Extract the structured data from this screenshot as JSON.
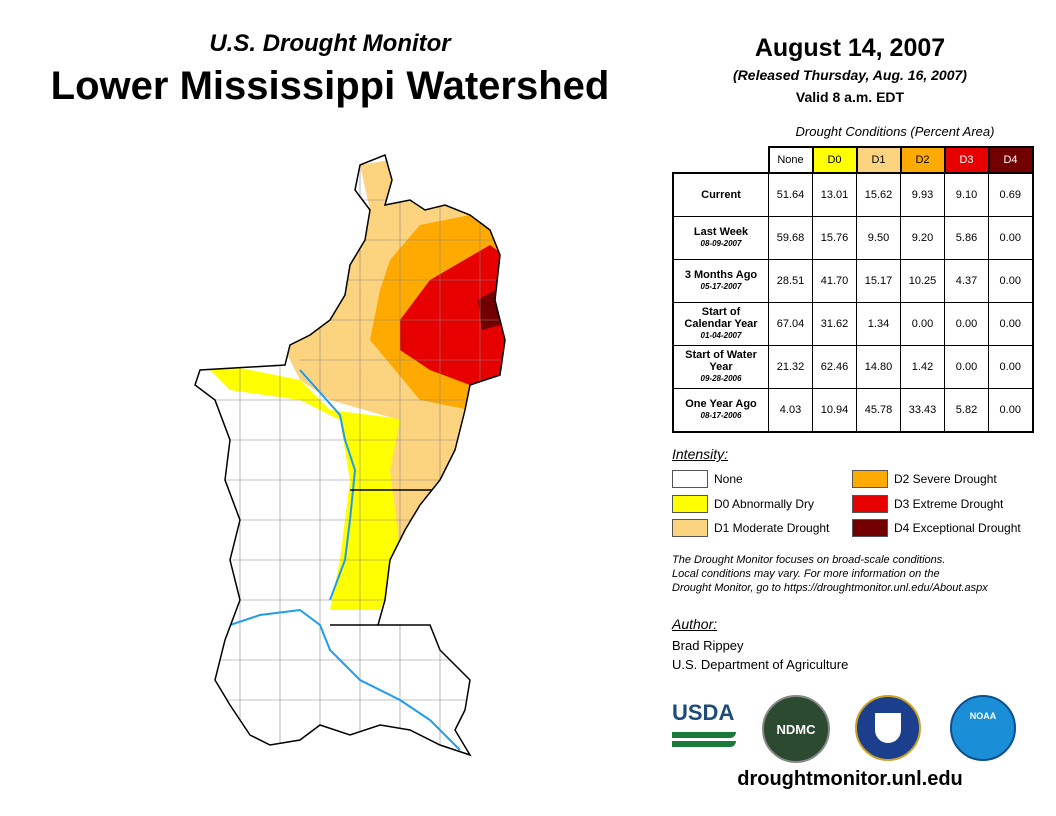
{
  "header": {
    "subtitle": "U.S. Drought Monitor",
    "title": "Lower Mississippi Watershed",
    "date": "August 14, 2007",
    "released": "(Released Thursday, Aug. 16, 2007)",
    "valid": "Valid 8 a.m. EDT"
  },
  "table": {
    "caption": "Drought Conditions (Percent Area)",
    "columns": [
      "None",
      "D0",
      "D1",
      "D2",
      "D3",
      "D4"
    ],
    "column_colors": [
      "#ffffff",
      "#ffff00",
      "#fcd37f",
      "#ffaa00",
      "#e60000",
      "#730000"
    ],
    "rows": [
      {
        "label": "Current",
        "date": "",
        "values": [
          "51.64",
          "13.01",
          "15.62",
          "9.93",
          "9.10",
          "0.69"
        ]
      },
      {
        "label": "Last Week",
        "date": "08-09-2007",
        "values": [
          "59.68",
          "15.76",
          "9.50",
          "9.20",
          "5.86",
          "0.00"
        ]
      },
      {
        "label": "3 Months Ago",
        "date": "05-17-2007",
        "values": [
          "28.51",
          "41.70",
          "15.17",
          "10.25",
          "4.37",
          "0.00"
        ]
      },
      {
        "label": "Start of Calendar Year",
        "date": "01-04-2007",
        "values": [
          "67.04",
          "31.62",
          "1.34",
          "0.00",
          "0.00",
          "0.00"
        ]
      },
      {
        "label": "Start of Water Year",
        "date": "09-28-2006",
        "values": [
          "21.32",
          "62.46",
          "14.80",
          "1.42",
          "0.00",
          "0.00"
        ]
      },
      {
        "label": "One Year Ago",
        "date": "08-17-2006",
        "values": [
          "4.03",
          "10.94",
          "45.78",
          "33.43",
          "5.82",
          "0.00"
        ]
      }
    ]
  },
  "legend": {
    "title": "Intensity:",
    "items": [
      {
        "label": "None",
        "color": "#ffffff"
      },
      {
        "label": "D0 Abnormally Dry",
        "color": "#ffff00"
      },
      {
        "label": "D1 Moderate Drought",
        "color": "#fcd37f"
      },
      {
        "label": "D2 Severe Drought",
        "color": "#ffaa00"
      },
      {
        "label": "D3 Extreme Drought",
        "color": "#e60000"
      },
      {
        "label": "D4 Exceptional Drought",
        "color": "#730000"
      }
    ]
  },
  "note": [
    "The Drought Monitor focuses on broad-scale conditions.",
    "Local conditions may vary. For more information on the",
    "Drought Monitor, go to https://droughtmonitor.unl.edu/About.aspx"
  ],
  "author": {
    "heading": "Author:",
    "name": "Brad Rippey",
    "org": "U.S. Department of Agriculture"
  },
  "logos": {
    "usda": "USDA",
    "ndmc": "NDMC",
    "noaa": "NOAA"
  },
  "url": "droughtmonitor.unl.edu"
}
